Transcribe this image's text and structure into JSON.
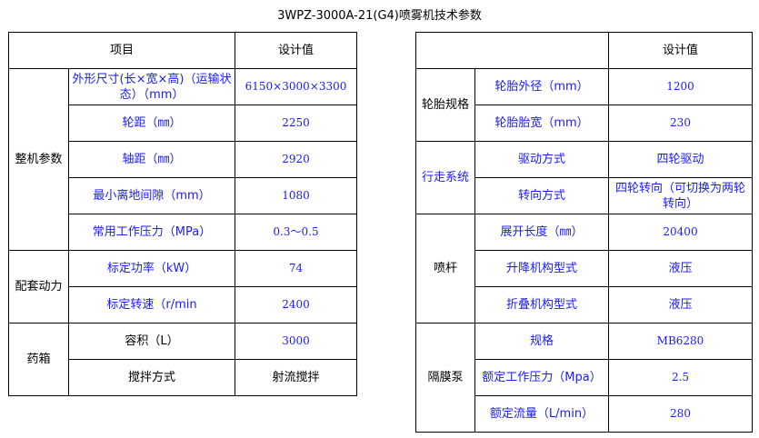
{
  "title": "3WPZ-3000A-21(G4)喷雾机技术参数",
  "left": {
    "header": {
      "item": "项目",
      "value": "设计值"
    },
    "groups": [
      {
        "name": "整机参数",
        "rows": [
          {
            "label": "外形尺寸(长×宽×高)（运输状态）（mm）",
            "value": "6150×3000×3300"
          },
          {
            "label": "轮距（㎜）",
            "value": "2250"
          },
          {
            "label": "轴距（㎜）",
            "value": "2920"
          },
          {
            "label": "最小离地间隙（mm）",
            "value": "1080"
          },
          {
            "label": "常用工作压力（MPa）",
            "value": "0.3～0.5"
          }
        ]
      },
      {
        "name": "配套动力",
        "rows": [
          {
            "label": "标定功率（kW）",
            "value": "74"
          },
          {
            "label": "标定转速（r/min",
            "value": "2400"
          }
        ]
      },
      {
        "name": "药箱",
        "rows": [
          {
            "label": "容积（L）",
            "value": "3000"
          },
          {
            "label": "搅拌方式",
            "value": "射流搅拌"
          }
        ]
      }
    ]
  },
  "right": {
    "header": {
      "item": "",
      "value": "设计值"
    },
    "groups": [
      {
        "name": "轮胎规格",
        "rows": [
          {
            "label": "轮胎外径（mm）",
            "value": "1200"
          },
          {
            "label": "轮胎胎宽（mm）",
            "value": "230"
          }
        ]
      },
      {
        "name": "行走系统",
        "rows": [
          {
            "label": "驱动方式",
            "value": "四轮驱动"
          },
          {
            "label": "转向方式",
            "value": "四轮转向（可切换为两轮转向）"
          }
        ]
      },
      {
        "name": "喷杆",
        "rows": [
          {
            "label": "展开长度（㎜）",
            "value": "20400"
          },
          {
            "label": "升降机构型式",
            "value": "液压"
          },
          {
            "label": "折叠机构型式",
            "value": "液压"
          }
        ]
      },
      {
        "name": "隔膜泵",
        "rows": [
          {
            "label": "规格",
            "value": "MB6280"
          },
          {
            "label": "额定工作压力（Mpa）",
            "value": "2.5"
          },
          {
            "label": "额定流量（L/min）",
            "value": "280"
          }
        ]
      }
    ]
  },
  "colors": {
    "text_blue": "#1a1aff",
    "border": "#000000"
  }
}
